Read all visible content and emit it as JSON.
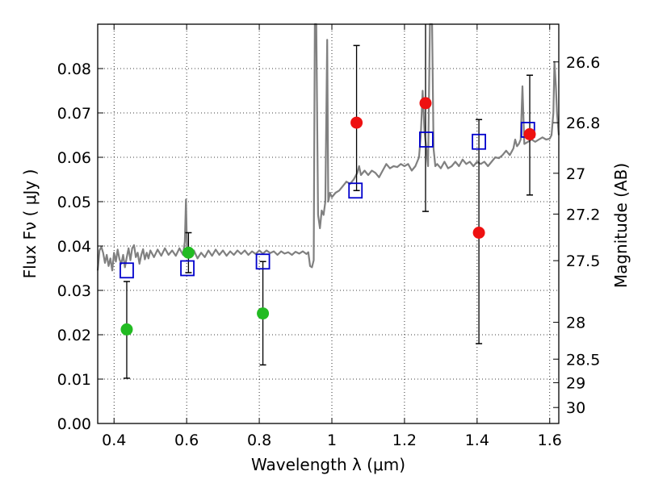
{
  "chart_data": {
    "type": "scatter",
    "title": "",
    "xlabel": "Wavelength  λ (μm)",
    "ylabel": "Flux  Fν  ( μJy )",
    "y2label": "Magnitude (AB)",
    "xlim": [
      0.355,
      1.625
    ],
    "ylim": [
      0.0,
      0.09
    ],
    "grid": true,
    "x_ticks": [
      {
        "value": 0.4,
        "label": "0.4"
      },
      {
        "value": 0.6,
        "label": "0.6"
      },
      {
        "value": 0.8,
        "label": "0.8"
      },
      {
        "value": 1.0,
        "label": "1"
      },
      {
        "value": 1.2,
        "label": "1.2"
      },
      {
        "value": 1.4,
        "label": "1.4"
      },
      {
        "value": 1.6,
        "label": "1.6"
      }
    ],
    "y_ticks": [
      {
        "value": 0.0,
        "label": "0.00"
      },
      {
        "value": 0.01,
        "label": "0.01"
      },
      {
        "value": 0.02,
        "label": "0.02"
      },
      {
        "value": 0.03,
        "label": "0.03"
      },
      {
        "value": 0.04,
        "label": "0.04"
      },
      {
        "value": 0.05,
        "label": "0.05"
      },
      {
        "value": 0.06,
        "label": "0.06"
      },
      {
        "value": 0.07,
        "label": "0.07"
      },
      {
        "value": 0.08,
        "label": "0.08"
      }
    ],
    "mag_ticks": [
      {
        "flux": 0.0815,
        "label": "26.6"
      },
      {
        "flux": 0.0678,
        "label": "26.8"
      },
      {
        "flux": 0.0564,
        "label": "27"
      },
      {
        "flux": 0.0472,
        "label": "27.2"
      },
      {
        "flux": 0.0367,
        "label": "27.5"
      },
      {
        "flux": 0.0228,
        "label": "28"
      },
      {
        "flux": 0.0145,
        "label": "28.5"
      },
      {
        "flux": 0.0092,
        "label": "29"
      },
      {
        "flux": 0.0036,
        "label": "30"
      }
    ],
    "series": [
      {
        "kind": "spectrum-line",
        "color": "#808080",
        "points": [
          [
            0.355,
            0.0345
          ],
          [
            0.36,
            0.039
          ],
          [
            0.365,
            0.0398
          ],
          [
            0.37,
            0.0385
          ],
          [
            0.375,
            0.0362
          ],
          [
            0.38,
            0.038
          ],
          [
            0.385,
            0.0355
          ],
          [
            0.39,
            0.0372
          ],
          [
            0.395,
            0.0345
          ],
          [
            0.4,
            0.0385
          ],
          [
            0.405,
            0.0365
          ],
          [
            0.41,
            0.0392
          ],
          [
            0.415,
            0.037
          ],
          [
            0.42,
            0.036
          ],
          [
            0.425,
            0.038
          ],
          [
            0.43,
            0.0352
          ],
          [
            0.435,
            0.0375
          ],
          [
            0.44,
            0.0395
          ],
          [
            0.445,
            0.0368
          ],
          [
            0.45,
            0.0395
          ],
          [
            0.455,
            0.0402
          ],
          [
            0.46,
            0.0375
          ],
          [
            0.465,
            0.0385
          ],
          [
            0.47,
            0.036
          ],
          [
            0.475,
            0.038
          ],
          [
            0.48,
            0.0393
          ],
          [
            0.485,
            0.037
          ],
          [
            0.49,
            0.0385
          ],
          [
            0.495,
            0.0372
          ],
          [
            0.5,
            0.039
          ],
          [
            0.51,
            0.0375
          ],
          [
            0.52,
            0.0392
          ],
          [
            0.53,
            0.0378
          ],
          [
            0.54,
            0.0395
          ],
          [
            0.55,
            0.038
          ],
          [
            0.56,
            0.039
          ],
          [
            0.57,
            0.0378
          ],
          [
            0.58,
            0.0395
          ],
          [
            0.59,
            0.038
          ],
          [
            0.595,
            0.041
          ],
          [
            0.598,
            0.0505
          ],
          [
            0.601,
            0.039
          ],
          [
            0.61,
            0.0385
          ],
          [
            0.62,
            0.039
          ],
          [
            0.63,
            0.0372
          ],
          [
            0.64,
            0.0385
          ],
          [
            0.65,
            0.0375
          ],
          [
            0.66,
            0.039
          ],
          [
            0.67,
            0.0378
          ],
          [
            0.68,
            0.0392
          ],
          [
            0.69,
            0.038
          ],
          [
            0.7,
            0.039
          ],
          [
            0.71,
            0.0378
          ],
          [
            0.72,
            0.0388
          ],
          [
            0.73,
            0.038
          ],
          [
            0.74,
            0.039
          ],
          [
            0.75,
            0.0382
          ],
          [
            0.76,
            0.039
          ],
          [
            0.77,
            0.038
          ],
          [
            0.78,
            0.0388
          ],
          [
            0.79,
            0.0382
          ],
          [
            0.8,
            0.039
          ],
          [
            0.81,
            0.0383
          ],
          [
            0.82,
            0.039
          ],
          [
            0.83,
            0.0384
          ],
          [
            0.84,
            0.0388
          ],
          [
            0.85,
            0.038
          ],
          [
            0.86,
            0.0388
          ],
          [
            0.87,
            0.0383
          ],
          [
            0.88,
            0.0386
          ],
          [
            0.89,
            0.038
          ],
          [
            0.9,
            0.0387
          ],
          [
            0.91,
            0.0383
          ],
          [
            0.92,
            0.0388
          ],
          [
            0.93,
            0.0382
          ],
          [
            0.935,
            0.0386
          ],
          [
            0.94,
            0.0355
          ],
          [
            0.945,
            0.0352
          ],
          [
            0.95,
            0.0368
          ],
          [
            0.953,
            0.09
          ],
          [
            0.957,
            0.09
          ],
          [
            0.962,
            0.047
          ],
          [
            0.967,
            0.044
          ],
          [
            0.972,
            0.048
          ],
          [
            0.977,
            0.047
          ],
          [
            0.982,
            0.05
          ],
          [
            0.987,
            0.0865
          ],
          [
            0.99,
            0.05
          ],
          [
            0.995,
            0.052
          ],
          [
            1.0,
            0.051
          ],
          [
            1.01,
            0.052
          ],
          [
            1.02,
            0.0525
          ],
          [
            1.03,
            0.0535
          ],
          [
            1.04,
            0.0545
          ],
          [
            1.05,
            0.054
          ],
          [
            1.06,
            0.055
          ],
          [
            1.07,
            0.0565
          ],
          [
            1.075,
            0.058
          ],
          [
            1.08,
            0.056
          ],
          [
            1.09,
            0.057
          ],
          [
            1.1,
            0.056
          ],
          [
            1.11,
            0.057
          ],
          [
            1.12,
            0.0565
          ],
          [
            1.13,
            0.0555
          ],
          [
            1.14,
            0.057
          ],
          [
            1.15,
            0.0585
          ],
          [
            1.16,
            0.0575
          ],
          [
            1.17,
            0.058
          ],
          [
            1.18,
            0.0578
          ],
          [
            1.19,
            0.0585
          ],
          [
            1.2,
            0.058
          ],
          [
            1.21,
            0.0585
          ],
          [
            1.22,
            0.057
          ],
          [
            1.23,
            0.058
          ],
          [
            1.24,
            0.06
          ],
          [
            1.245,
            0.065
          ],
          [
            1.25,
            0.075
          ],
          [
            1.255,
            0.066
          ],
          [
            1.26,
            0.062
          ],
          [
            1.265,
            0.058
          ],
          [
            1.27,
            0.09
          ],
          [
            1.276,
            0.09
          ],
          [
            1.28,
            0.062
          ],
          [
            1.285,
            0.058
          ],
          [
            1.29,
            0.0585
          ],
          [
            1.3,
            0.0575
          ],
          [
            1.31,
            0.059
          ],
          [
            1.32,
            0.0575
          ],
          [
            1.33,
            0.058
          ],
          [
            1.34,
            0.059
          ],
          [
            1.35,
            0.058
          ],
          [
            1.36,
            0.0595
          ],
          [
            1.37,
            0.0585
          ],
          [
            1.38,
            0.059
          ],
          [
            1.39,
            0.058
          ],
          [
            1.4,
            0.059
          ],
          [
            1.41,
            0.0585
          ],
          [
            1.42,
            0.059
          ],
          [
            1.43,
            0.058
          ],
          [
            1.44,
            0.059
          ],
          [
            1.45,
            0.06
          ],
          [
            1.46,
            0.0598
          ],
          [
            1.47,
            0.0605
          ],
          [
            1.48,
            0.0615
          ],
          [
            1.49,
            0.0605
          ],
          [
            1.5,
            0.062
          ],
          [
            1.505,
            0.064
          ],
          [
            1.51,
            0.0625
          ],
          [
            1.515,
            0.063
          ],
          [
            1.52,
            0.064
          ],
          [
            1.525,
            0.076
          ],
          [
            1.53,
            0.063
          ],
          [
            1.54,
            0.0635
          ],
          [
            1.55,
            0.064
          ],
          [
            1.56,
            0.0635
          ],
          [
            1.57,
            0.064
          ],
          [
            1.58,
            0.0645
          ],
          [
            1.59,
            0.064
          ],
          [
            1.6,
            0.0642
          ],
          [
            1.605,
            0.065
          ],
          [
            1.61,
            0.07
          ],
          [
            1.613,
            0.0815
          ],
          [
            1.617,
            0.076
          ],
          [
            1.62,
            0.07
          ],
          [
            1.625,
            0.065
          ]
        ]
      },
      {
        "kind": "model-squares",
        "color": "#0000cc",
        "points": [
          [
            0.435,
            0.0345
          ],
          [
            0.602,
            0.035
          ],
          [
            0.81,
            0.0365
          ],
          [
            1.065,
            0.0525
          ],
          [
            1.26,
            0.064
          ],
          [
            1.405,
            0.0635
          ],
          [
            1.54,
            0.0662
          ]
        ]
      },
      {
        "kind": "green-points",
        "color": "#22bb22",
        "points": [
          {
            "x": 0.435,
            "y": 0.0212,
            "lo": 0.0102,
            "hi": 0.032
          },
          {
            "x": 0.605,
            "y": 0.0385,
            "lo": 0.034,
            "hi": 0.043
          },
          {
            "x": 0.81,
            "y": 0.0248,
            "lo": 0.0132,
            "hi": 0.0365
          }
        ]
      },
      {
        "kind": "red-points",
        "color": "#ee1111",
        "points": [
          {
            "x": 1.068,
            "y": 0.0678,
            "lo": 0.0525,
            "hi": 0.0852
          },
          {
            "x": 1.258,
            "y": 0.0722,
            "lo": 0.0478,
            "hi": 0.09
          },
          {
            "x": 1.405,
            "y": 0.043,
            "lo": 0.018,
            "hi": 0.0685
          },
          {
            "x": 1.545,
            "y": 0.0652,
            "lo": 0.0515,
            "hi": 0.0785
          }
        ]
      }
    ]
  }
}
